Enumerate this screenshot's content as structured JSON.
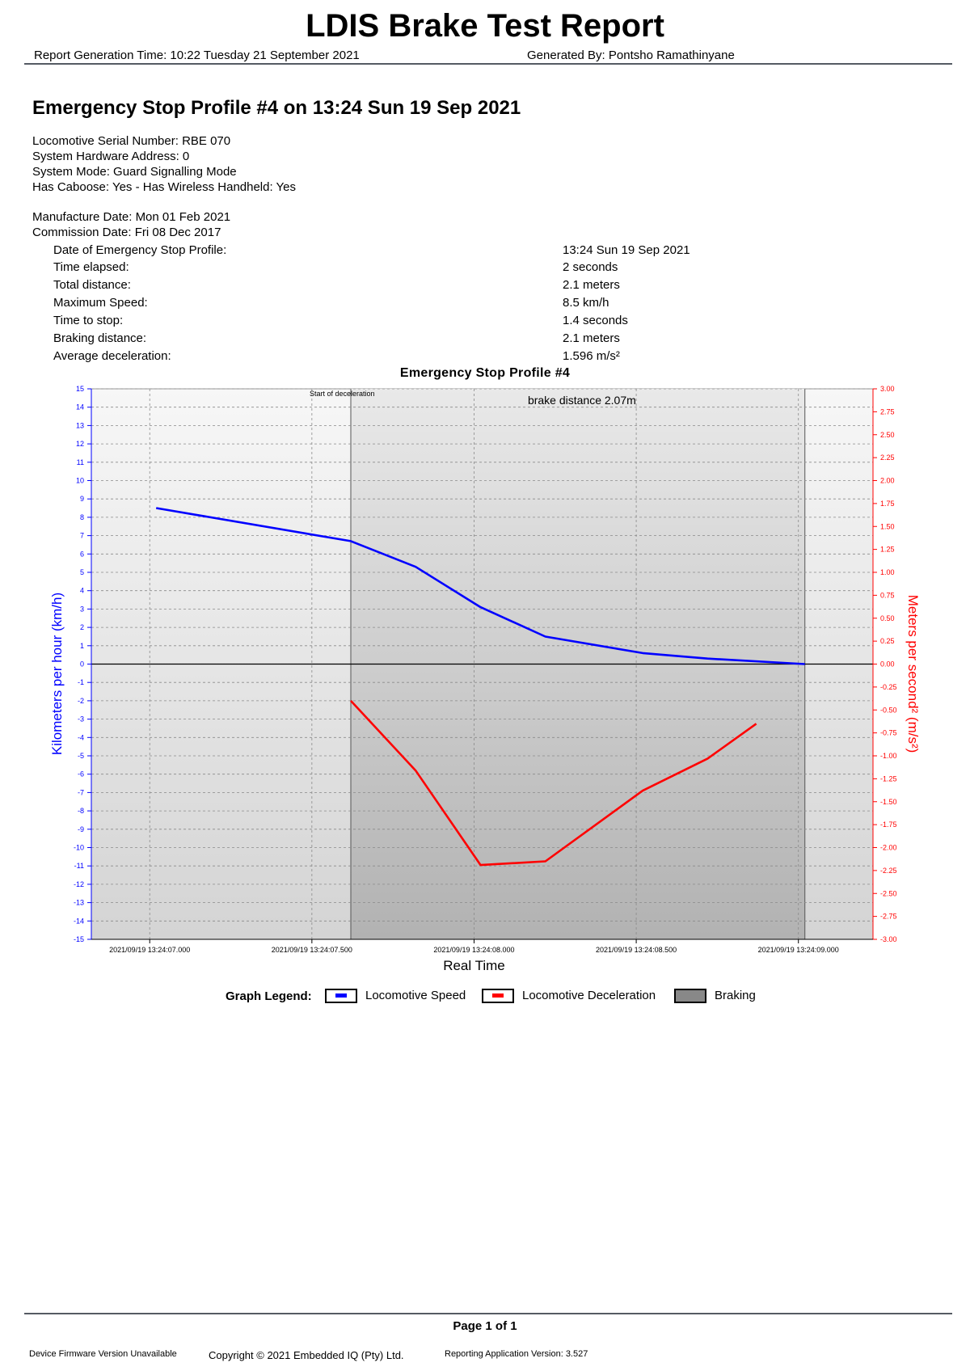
{
  "header": {
    "title": "LDIS Brake Test Report",
    "generation_time": "Report Generation Time: 10:22 Tuesday 21 September 2021",
    "generated_by": "Generated By: Pontsho Ramathinyane"
  },
  "profile": {
    "heading": "Emergency Stop Profile #4 on 13:24 Sun 19 Sep 2021",
    "info": [
      "Locomotive Serial Number: RBE 070",
      "System Hardware Address: 0",
      "System Mode: Guard Signalling Mode",
      "Has Caboose: Yes - Has Wireless Handheld: Yes",
      "Manufacture Date: Mon 01 Feb 2021",
      "Commission Date: Fri 08 Dec 2017"
    ],
    "details": [
      {
        "label": "Date of Emergency Stop Profile:",
        "value": "13:24 Sun 19 Sep 2021"
      },
      {
        "label": "Time elapsed:",
        "value": "2 seconds"
      },
      {
        "label": "Total distance:",
        "value": "2.1 meters"
      },
      {
        "label": "Maximum Speed:",
        "value": "8.5 km/h"
      },
      {
        "label": "Time to stop:",
        "value": "1.4 seconds"
      },
      {
        "label": "Braking distance:",
        "value": "2.1 meters"
      },
      {
        "label": "Average deceleration:",
        "value": "1.596 m/s²"
      }
    ]
  },
  "chart_data": {
    "type": "line",
    "title": "Emergency Stop Profile #4",
    "xlabel": "Real Time",
    "ylabel_left": "Kilometers per hour (km/h)",
    "ylabel_right": "Meters per second² (m/s²)",
    "x_tick_labels": [
      "2021/09/19 13:24:07.000",
      "2021/09/19 13:24:07.500",
      "2021/09/19 13:24:08.000",
      "2021/09/19 13:24:08.500",
      "2021/09/19 13:24:09.000"
    ],
    "x_ticks_sec": [
      0,
      0.5,
      1.0,
      1.5,
      2.0
    ],
    "xlim_sec": [
      -0.18,
      2.23
    ],
    "ylim_left": [
      -15,
      15
    ],
    "ylim_right": [
      -3.0,
      3.0
    ],
    "left_ticks": [
      "15",
      "14",
      "13",
      "12",
      "11",
      "10",
      "9",
      "8",
      "7",
      "6",
      "5",
      "4",
      "3",
      "2",
      "1",
      "0",
      "-1",
      "-2",
      "-3",
      "-4",
      "-5",
      "-6",
      "-7",
      "-8",
      "-9",
      "-10",
      "-11",
      "-12",
      "-13",
      "-14",
      "-15"
    ],
    "right_ticks": [
      "3.00",
      "2.75",
      "2.50",
      "2.25",
      "2.00",
      "1.75",
      "1.50",
      "1.25",
      "1.00",
      "0.75",
      "0.50",
      "0.25",
      "0.00",
      "-0.25",
      "-0.50",
      "-0.75",
      "-1.00",
      "-1.25",
      "-1.50",
      "-1.75",
      "-2.00",
      "-2.25",
      "-2.50",
      "-2.75",
      "-3.00"
    ],
    "series": [
      {
        "name": "Locomotive Speed",
        "axis": "left",
        "color": "#0000ff",
        "x": [
          0.02,
          0.62,
          0.82,
          1.02,
          1.22,
          1.52,
          1.72,
          2.02
        ],
        "y": [
          8.5,
          6.7,
          5.3,
          3.1,
          1.5,
          0.6,
          0.3,
          0.0
        ]
      },
      {
        "name": "Locomotive Deceleration",
        "axis": "right",
        "color": "#ff0000",
        "x": [
          0.62,
          0.82,
          1.02,
          1.22,
          1.52,
          1.72,
          1.87
        ],
        "y": [
          -0.4,
          -1.16,
          -2.19,
          -2.15,
          -1.38,
          -1.03,
          -0.65
        ]
      }
    ],
    "braking_region_sec": [
      0.62,
      2.02
    ],
    "annotations": {
      "start_of_deceleration": "Start of deceleration",
      "brake_distance": "brake distance 2.07m"
    },
    "grid": true,
    "legend_position": "bottom"
  },
  "legend": {
    "title": "Graph Legend:",
    "items": [
      {
        "label": "Locomotive Speed",
        "color": "#0000ff"
      },
      {
        "label": "Locomotive Deceleration",
        "color": "#ff0000"
      },
      {
        "label": "Braking",
        "color": "#888888"
      }
    ]
  },
  "footer": {
    "page": "Page 1 of 1",
    "firmware": "Device Firmware Version Unavailable",
    "copyright": "Copyright © 2021 Embedded IQ (Pty) Ltd.",
    "app_version": "Reporting Application Version: 3.527"
  }
}
